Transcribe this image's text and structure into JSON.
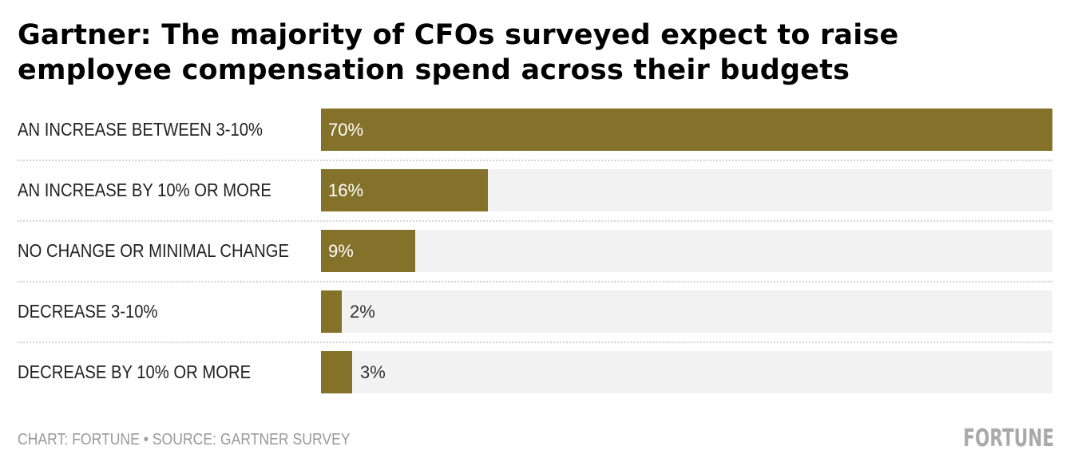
{
  "chart_data": {
    "type": "bar",
    "orientation": "horizontal",
    "title": "Gartner: The majority of CFOs surveyed expect to raise employee compensation spend across their budgets",
    "categories": [
      "AN INCREASE BETWEEN 3-10%",
      "AN INCREASE BY 10% OR MORE",
      "NO CHANGE OR MINIMAL CHANGE",
      "DECREASE 3-10%",
      "DECREASE BY 10% OR MORE"
    ],
    "values": [
      70,
      16,
      9,
      2,
      3
    ],
    "value_labels": [
      "70%",
      "16%",
      "9%",
      "2%",
      "3%"
    ],
    "xlim": [
      0,
      70
    ],
    "unit": "%",
    "grid": false,
    "legend": "none",
    "bar_color": "#84722b",
    "track_color": "#f2f2f2"
  },
  "footer": {
    "source": "CHART: FORTUNE • SOURCE: GARTNER SURVEY",
    "logo": "FORTUNE"
  }
}
